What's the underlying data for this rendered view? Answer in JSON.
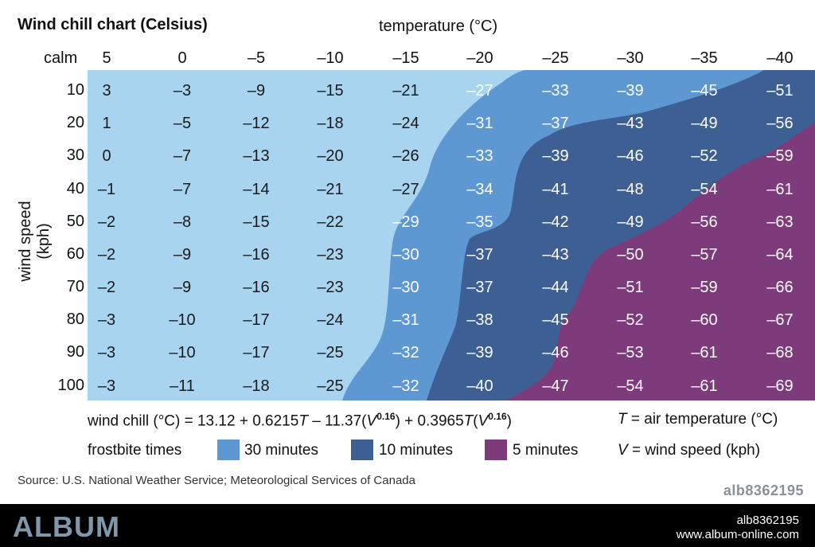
{
  "title": "Wind chill chart (Celsius)",
  "temperature_axis_label": "temperature (°C)",
  "wind_axis_label": "wind speed (kph)",
  "calm_label": "calm",
  "formula": {
    "text_a": "wind chill (°C) = 13.12 + 0.6215",
    "t1": "T",
    "text_b": " – 11.37(",
    "v1": "V",
    "exp1": "0.16",
    "text_c": ") + 0.3965",
    "t2": "T",
    "text_d": "(",
    "v2": "V",
    "exp2": "0.16",
    "text_e": ")"
  },
  "definitions": {
    "t_symbol": "T",
    "t_text": " = air temperature (°C)",
    "v_symbol": "V",
    "v_text": " = wind speed (kph)"
  },
  "legend": {
    "title": "frostbite times",
    "items": [
      {
        "label": "30 minutes",
        "color": "#5e98d2"
      },
      {
        "label": "10 minutes",
        "color": "#3d5f94"
      },
      {
        "label": "5 minutes",
        "color": "#7d3b7b"
      }
    ]
  },
  "source": "Source: U.S. National Weather Service; Meteorological Services of Canada",
  "image_code": "alb8362195",
  "footer": {
    "logo": "ALBUM",
    "code": "alb8362195",
    "url": "www.album-online.com"
  },
  "colors": {
    "safe": "#a8d4f0",
    "min30": "#5e98d2",
    "min10": "#3d5f94",
    "min5": "#7d3b7b"
  },
  "chart_data": {
    "type": "table",
    "title": "Wind chill chart (Celsius)",
    "xlabel": "temperature (°C)",
    "ylabel": "wind speed (kph)",
    "temperatures": [
      "5",
      "0",
      "–5",
      "–10",
      "–15",
      "–20",
      "–25",
      "–30",
      "–35",
      "–40"
    ],
    "wind_speeds": [
      "10",
      "20",
      "30",
      "40",
      "50",
      "60",
      "70",
      "80",
      "90",
      "100"
    ],
    "values": [
      [
        "3",
        "–3",
        "–9",
        "–15",
        "–21",
        "–27",
        "–33",
        "–39",
        "–45",
        "–51"
      ],
      [
        "1",
        "–5",
        "–12",
        "–18",
        "–24",
        "–31",
        "–37",
        "–43",
        "–49",
        "–56"
      ],
      [
        "0",
        "–7",
        "–13",
        "–20",
        "–26",
        "–33",
        "–39",
        "–46",
        "–52",
        "–59"
      ],
      [
        "–1",
        "–7",
        "–14",
        "–21",
        "–27",
        "–34",
        "–41",
        "–48",
        "–54",
        "–61"
      ],
      [
        "–2",
        "–8",
        "–15",
        "–22",
        "–29",
        "–35",
        "–42",
        "–49",
        "–56",
        "–63"
      ],
      [
        "–2",
        "–9",
        "–16",
        "–23",
        "–30",
        "–37",
        "–43",
        "–50",
        "–57",
        "–64"
      ],
      [
        "–2",
        "–9",
        "–16",
        "–23",
        "–30",
        "–37",
        "–44",
        "–51",
        "–59",
        "–66"
      ],
      [
        "–3",
        "–10",
        "–17",
        "–24",
        "–31",
        "–38",
        "–45",
        "–52",
        "–60",
        "–67"
      ],
      [
        "–3",
        "–10",
        "–17",
        "–25",
        "–32",
        "–39",
        "–46",
        "–53",
        "–61",
        "–68"
      ],
      [
        "–3",
        "–11",
        "–18",
        "–25",
        "–32",
        "–40",
        "–47",
        "–54",
        "–61",
        "–69"
      ]
    ],
    "frostbite_zones": [
      {
        "zone": "30 minutes",
        "color": "#5e98d2"
      },
      {
        "zone": "10 minutes",
        "color": "#3d5f94"
      },
      {
        "zone": "5 minutes",
        "color": "#7d3b7b"
      }
    ]
  }
}
